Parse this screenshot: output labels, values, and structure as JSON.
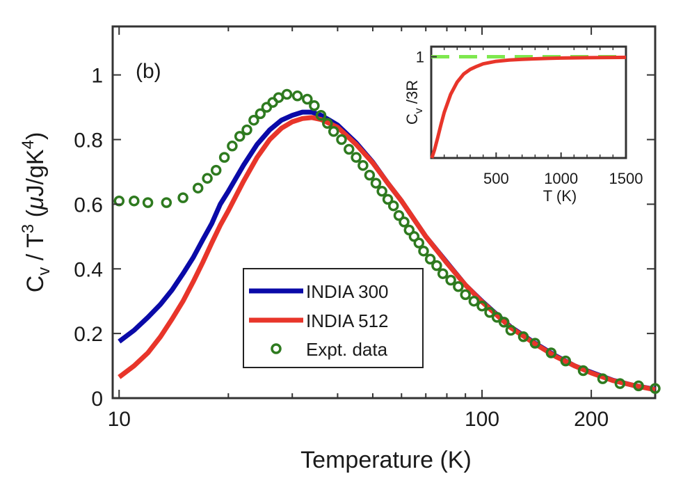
{
  "chart_data": [
    {
      "type": "line",
      "panel_label": "(b)",
      "xlabel": "Temperature (K)",
      "ylabel": {
        "main": "C",
        "sub": "v",
        "mid": " / T",
        "sup": "3",
        "unit_open": " (",
        "mu": "μ",
        "unit_mid": "J/gK",
        "unit_sup": "4",
        "unit_close": ")"
      },
      "x_scale": "log",
      "xlim": [
        9.6,
        300
      ],
      "ylim": [
        0,
        1.15
      ],
      "x_ticks": [
        {
          "value": 10,
          "label": "10"
        },
        {
          "value": 20,
          "label": ""
        },
        {
          "value": 30,
          "label": ""
        },
        {
          "value": 40,
          "label": ""
        },
        {
          "value": 50,
          "label": ""
        },
        {
          "value": 60,
          "label": ""
        },
        {
          "value": 70,
          "label": ""
        },
        {
          "value": 80,
          "label": ""
        },
        {
          "value": 90,
          "label": ""
        },
        {
          "value": 100,
          "label": "100"
        },
        {
          "value": 200,
          "label": "200"
        }
      ],
      "y_ticks": [
        {
          "value": 0,
          "label": "0"
        },
        {
          "value": 0.2,
          "label": "0.2"
        },
        {
          "value": 0.4,
          "label": "0.4"
        },
        {
          "value": 0.6,
          "label": "0.6"
        },
        {
          "value": 0.8,
          "label": "0.8"
        },
        {
          "value": 1,
          "label": "1"
        }
      ],
      "grid": false,
      "legend_position": "lower-center",
      "series": [
        {
          "name": "INDIA 300",
          "style": "line",
          "color": "#0a0aa8",
          "x": [
            10,
            11,
            12,
            13,
            14,
            15,
            16,
            17,
            18,
            19,
            20,
            22,
            24,
            26,
            28,
            30,
            32,
            34,
            36,
            38,
            40,
            45,
            50,
            55,
            60,
            70,
            80,
            90,
            100,
            120,
            140,
            160,
            180,
            200,
            230,
            260,
            300
          ],
          "y": [
            0.175,
            0.21,
            0.25,
            0.29,
            0.335,
            0.385,
            0.435,
            0.49,
            0.54,
            0.6,
            0.64,
            0.72,
            0.785,
            0.83,
            0.86,
            0.875,
            0.885,
            0.885,
            0.875,
            0.86,
            0.845,
            0.79,
            0.73,
            0.665,
            0.61,
            0.5,
            0.42,
            0.35,
            0.3,
            0.22,
            0.17,
            0.13,
            0.1,
            0.08,
            0.055,
            0.04,
            0.027
          ]
        },
        {
          "name": "INDIA 512",
          "style": "line",
          "color": "#e8352a",
          "x": [
            10,
            11,
            12,
            13,
            14,
            15,
            16,
            17,
            18,
            19,
            20,
            22,
            24,
            26,
            28,
            30,
            32,
            34,
            36,
            38,
            40,
            45,
            50,
            55,
            60,
            70,
            80,
            90,
            100,
            120,
            140,
            160,
            180,
            200,
            230,
            260,
            300
          ],
          "y": [
            0.065,
            0.1,
            0.14,
            0.19,
            0.245,
            0.3,
            0.36,
            0.42,
            0.48,
            0.535,
            0.58,
            0.67,
            0.745,
            0.8,
            0.835,
            0.855,
            0.865,
            0.868,
            0.862,
            0.85,
            0.838,
            0.785,
            0.728,
            0.665,
            0.61,
            0.5,
            0.418,
            0.35,
            0.298,
            0.218,
            0.168,
            0.128,
            0.1,
            0.078,
            0.054,
            0.04,
            0.026
          ]
        },
        {
          "name": "Expt. data",
          "style": "markers",
          "color": "#2e7a1f",
          "x": [
            10,
            11,
            12,
            13.5,
            15,
            16.5,
            17.5,
            18.5,
            19.5,
            20.5,
            21.5,
            22.5,
            23.5,
            24.5,
            25.5,
            26.5,
            27.5,
            29,
            31,
            33,
            34.5,
            36,
            37.5,
            39,
            41,
            43,
            45,
            47,
            49,
            51,
            53,
            55,
            57,
            59,
            61,
            63,
            65,
            67,
            69,
            72,
            75,
            78,
            82,
            86,
            90,
            95,
            100,
            105,
            110,
            115,
            120,
            130,
            140,
            155,
            170,
            190,
            215,
            240,
            270,
            300
          ],
          "y": [
            0.61,
            0.61,
            0.605,
            0.605,
            0.62,
            0.65,
            0.68,
            0.705,
            0.745,
            0.78,
            0.81,
            0.83,
            0.86,
            0.88,
            0.9,
            0.915,
            0.93,
            0.94,
            0.935,
            0.925,
            0.905,
            0.875,
            0.85,
            0.825,
            0.8,
            0.77,
            0.745,
            0.72,
            0.69,
            0.665,
            0.64,
            0.615,
            0.595,
            0.565,
            0.545,
            0.52,
            0.5,
            0.48,
            0.455,
            0.43,
            0.41,
            0.385,
            0.365,
            0.345,
            0.32,
            0.3,
            0.285,
            0.265,
            0.25,
            0.235,
            0.21,
            0.19,
            0.17,
            0.14,
            0.115,
            0.085,
            0.06,
            0.045,
            0.038,
            0.03
          ]
        }
      ]
    },
    {
      "type": "line",
      "xlabel": "T (K)",
      "ylabel": {
        "main": "C",
        "sub": "v",
        "rest": " /3R"
      },
      "xlim": [
        0,
        1500
      ],
      "ylim": [
        0,
        1.1
      ],
      "x_ticks": [
        {
          "value": 500,
          "label": "500"
        },
        {
          "value": 1000,
          "label": "1000"
        },
        {
          "value": 1500,
          "label": "1500"
        }
      ],
      "y_ticks": [
        {
          "value": 1,
          "label": "1"
        }
      ],
      "grid": false,
      "series": [
        {
          "style": "dashed",
          "color": "#7fe84f",
          "x": [
            0,
            1500
          ],
          "y": [
            1,
            1
          ]
        },
        {
          "style": "line",
          "color": "#e8352a",
          "x": [
            5,
            25,
            50,
            75,
            100,
            150,
            200,
            250,
            300,
            350,
            400,
            500,
            600,
            700,
            800,
            900,
            1000,
            1200,
            1500
          ],
          "y": [
            0.0,
            0.08,
            0.2,
            0.33,
            0.45,
            0.63,
            0.75,
            0.83,
            0.875,
            0.905,
            0.93,
            0.955,
            0.967,
            0.975,
            0.98,
            0.984,
            0.987,
            0.991,
            0.994
          ]
        }
      ]
    }
  ]
}
